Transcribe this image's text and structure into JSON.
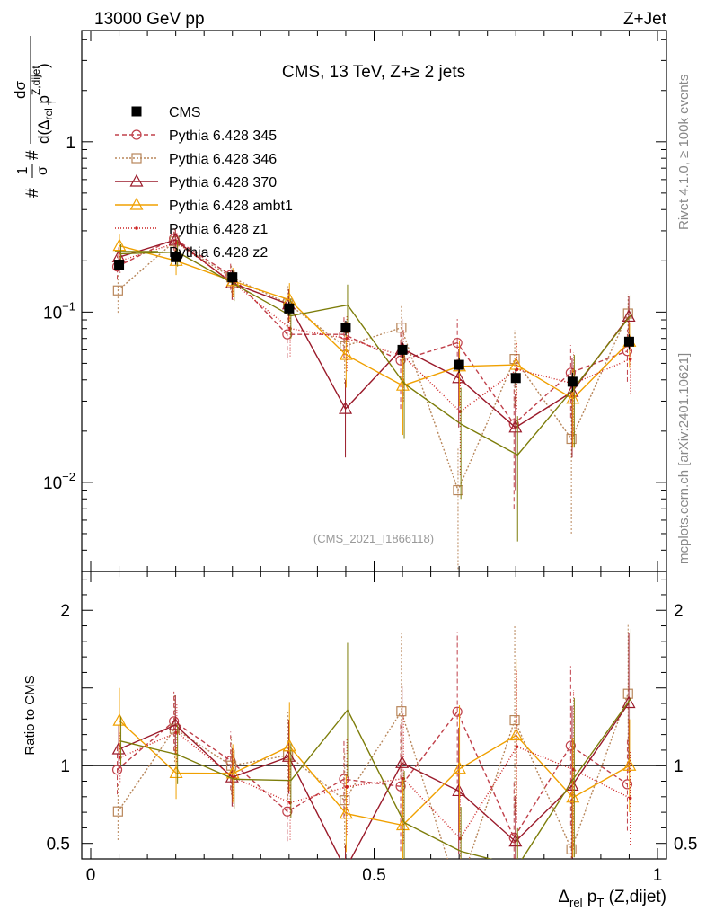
{
  "header": {
    "left": "13000 GeV pp",
    "right": "Z+Jet"
  },
  "side": {
    "rivet": "Rivet 4.1.0, ≥ 100k events",
    "mcplots": "mcplots.cern.ch [arXiv:2401.10621]"
  },
  "chart_data": {
    "type": "line",
    "title": "CMS, 13 TeV, Z+≥ 2 jets",
    "analysis_id": "(CMS_2021_I1866118)",
    "xlabel": {
      "main": "Δ",
      "sub": "rel",
      "p": " p",
      "psub": "T",
      "tail": " (Z,dijet)"
    },
    "ylabel": {
      "prefix": "# ",
      "one": "1",
      "sigma": "σ",
      "hash": "#",
      "num": "dσ",
      "den": "d(Δ",
      "den_sub": "rel",
      "den_p": " p",
      "den_psub": "T",
      "den_sup": "Z,dijet",
      "den_close": ")"
    },
    "ratio_ylabel": "Ratio to CMS",
    "xlim": [
      0,
      1
    ],
    "ylim_main": [
      0.003,
      4.5
    ],
    "ylim_ratio": [
      0.4,
      2.25
    ],
    "x_ticks": [
      "0",
      "0.5",
      "1"
    ],
    "main_y_ticks": [
      {
        "value": 1,
        "base": "1",
        "exp": ""
      },
      {
        "value": 0.1,
        "base": "10",
        "exp": "−1"
      },
      {
        "value": 0.01,
        "base": "10",
        "exp": "−2"
      }
    ],
    "ratio_y_ticks": [
      "2",
      "1",
      "0.5"
    ],
    "x": [
      0.05,
      0.15,
      0.25,
      0.35,
      0.45,
      0.55,
      0.65,
      0.75,
      0.85,
      0.95
    ],
    "data": {
      "name": "CMS",
      "values": [
        0.19,
        0.21,
        0.16,
        0.105,
        0.081,
        0.06,
        0.049,
        0.041,
        0.039,
        0.067
      ],
      "errors": [
        0.02,
        0.02,
        0.015,
        0.01,
        0.008,
        0.006,
        0.005,
        0.005,
        0.005,
        0.007
      ]
    },
    "series": [
      {
        "name": "Pythia 6.428 345",
        "color": "#c0404a",
        "dash": "5,3",
        "marker": "circle",
        "values": [
          0.185,
          0.27,
          0.165,
          0.074,
          0.074,
          0.052,
          0.066,
          0.022,
          0.044,
          0.059
        ],
        "errors": [
          0.03,
          0.04,
          0.03,
          0.02,
          0.02,
          0.025,
          0.025,
          0.015,
          0.02,
          0.02
        ]
      },
      {
        "name": "Pythia 6.428 346",
        "color": "#b8865a",
        "dash": "2,2",
        "marker": "square",
        "values": [
          0.134,
          0.26,
          0.16,
          0.112,
          0.063,
          0.081,
          0.009,
          0.053,
          0.018,
          0.098
        ],
        "errors": [
          0.035,
          0.045,
          0.03,
          0.03,
          0.025,
          0.03,
          0.007,
          0.025,
          0.013,
          0.03
        ]
      },
      {
        "name": "Pythia 6.428 370",
        "color": "#9a1a2a",
        "dash": "",
        "marker": "triangle",
        "values": [
          0.21,
          0.265,
          0.148,
          0.111,
          0.027,
          0.061,
          0.041,
          0.021,
          0.034,
          0.094
        ],
        "errors": [
          0.03,
          0.04,
          0.03,
          0.025,
          0.013,
          0.03,
          0.02,
          0.012,
          0.02,
          0.03
        ]
      },
      {
        "name": "Pythia 6.428 ambt1",
        "color": "#f0a000",
        "dash": "",
        "marker": "triangle",
        "values": [
          0.245,
          0.2,
          0.152,
          0.118,
          0.056,
          0.037,
          0.048,
          0.049,
          0.031,
          0.067
        ],
        "errors": [
          0.04,
          0.035,
          0.03,
          0.03,
          0.02,
          0.018,
          0.02,
          0.02,
          0.015,
          0.02
        ]
      },
      {
        "name": "Pythia 6.428 z1",
        "color": "#cc2020",
        "dash": "1,2",
        "marker": "dot",
        "values": [
          0.2,
          0.255,
          0.148,
          0.08,
          0.07,
          0.055,
          0.026,
          0.046,
          0.038,
          0.053
        ],
        "errors": [
          0.03,
          0.04,
          0.03,
          0.025,
          0.025,
          0.025,
          0.015,
          0.02,
          0.02,
          0.02
        ]
      },
      {
        "name": "Pythia 6.428 z2",
        "color": "#7d7d0a",
        "dash": "",
        "marker": "none",
        "values": [
          0.22,
          0.225,
          0.146,
          0.095,
          0.11,
          0.038,
          0.022,
          0.0145,
          0.036,
          0.096
        ],
        "errors": [
          0.03,
          0.04,
          0.03,
          0.025,
          0.035,
          0.02,
          0.014,
          0.01,
          0.02,
          0.03
        ]
      }
    ]
  }
}
